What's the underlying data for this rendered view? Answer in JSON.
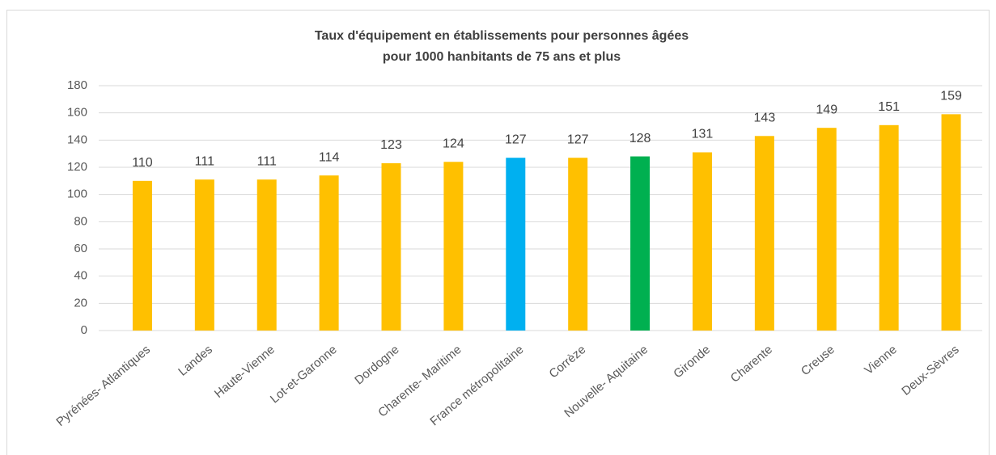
{
  "chart_data": {
    "type": "bar",
    "title": [
      "Taux d'équipement en établissements pour personnes âgées",
      "pour 1000 hanbitants de 75 ans et plus"
    ],
    "categories": [
      "Pyrénées- Atlantiques",
      "Landes",
      "Haute-Vienne",
      "Lot-et-Garonne",
      "Dordogne",
      "Charente- Maritime",
      "France métropolitaine",
      "Corrèze",
      "Nouvelle- Aquitaine",
      "Gironde",
      "Charente",
      "Creuse",
      "Vienne",
      "Deux-Sèvres"
    ],
    "values": [
      110,
      111,
      111,
      114,
      123,
      124,
      127,
      127,
      128,
      131,
      143,
      149,
      151,
      159
    ],
    "colors": [
      "#ffc000",
      "#ffc000",
      "#ffc000",
      "#ffc000",
      "#ffc000",
      "#ffc000",
      "#00b0f0",
      "#ffc000",
      "#00b050",
      "#ffc000",
      "#ffc000",
      "#ffc000",
      "#ffc000",
      "#ffc000"
    ],
    "ylim": [
      0,
      180
    ],
    "yticks": [
      0,
      20,
      40,
      60,
      80,
      100,
      120,
      140,
      160,
      180
    ],
    "grid": true
  }
}
